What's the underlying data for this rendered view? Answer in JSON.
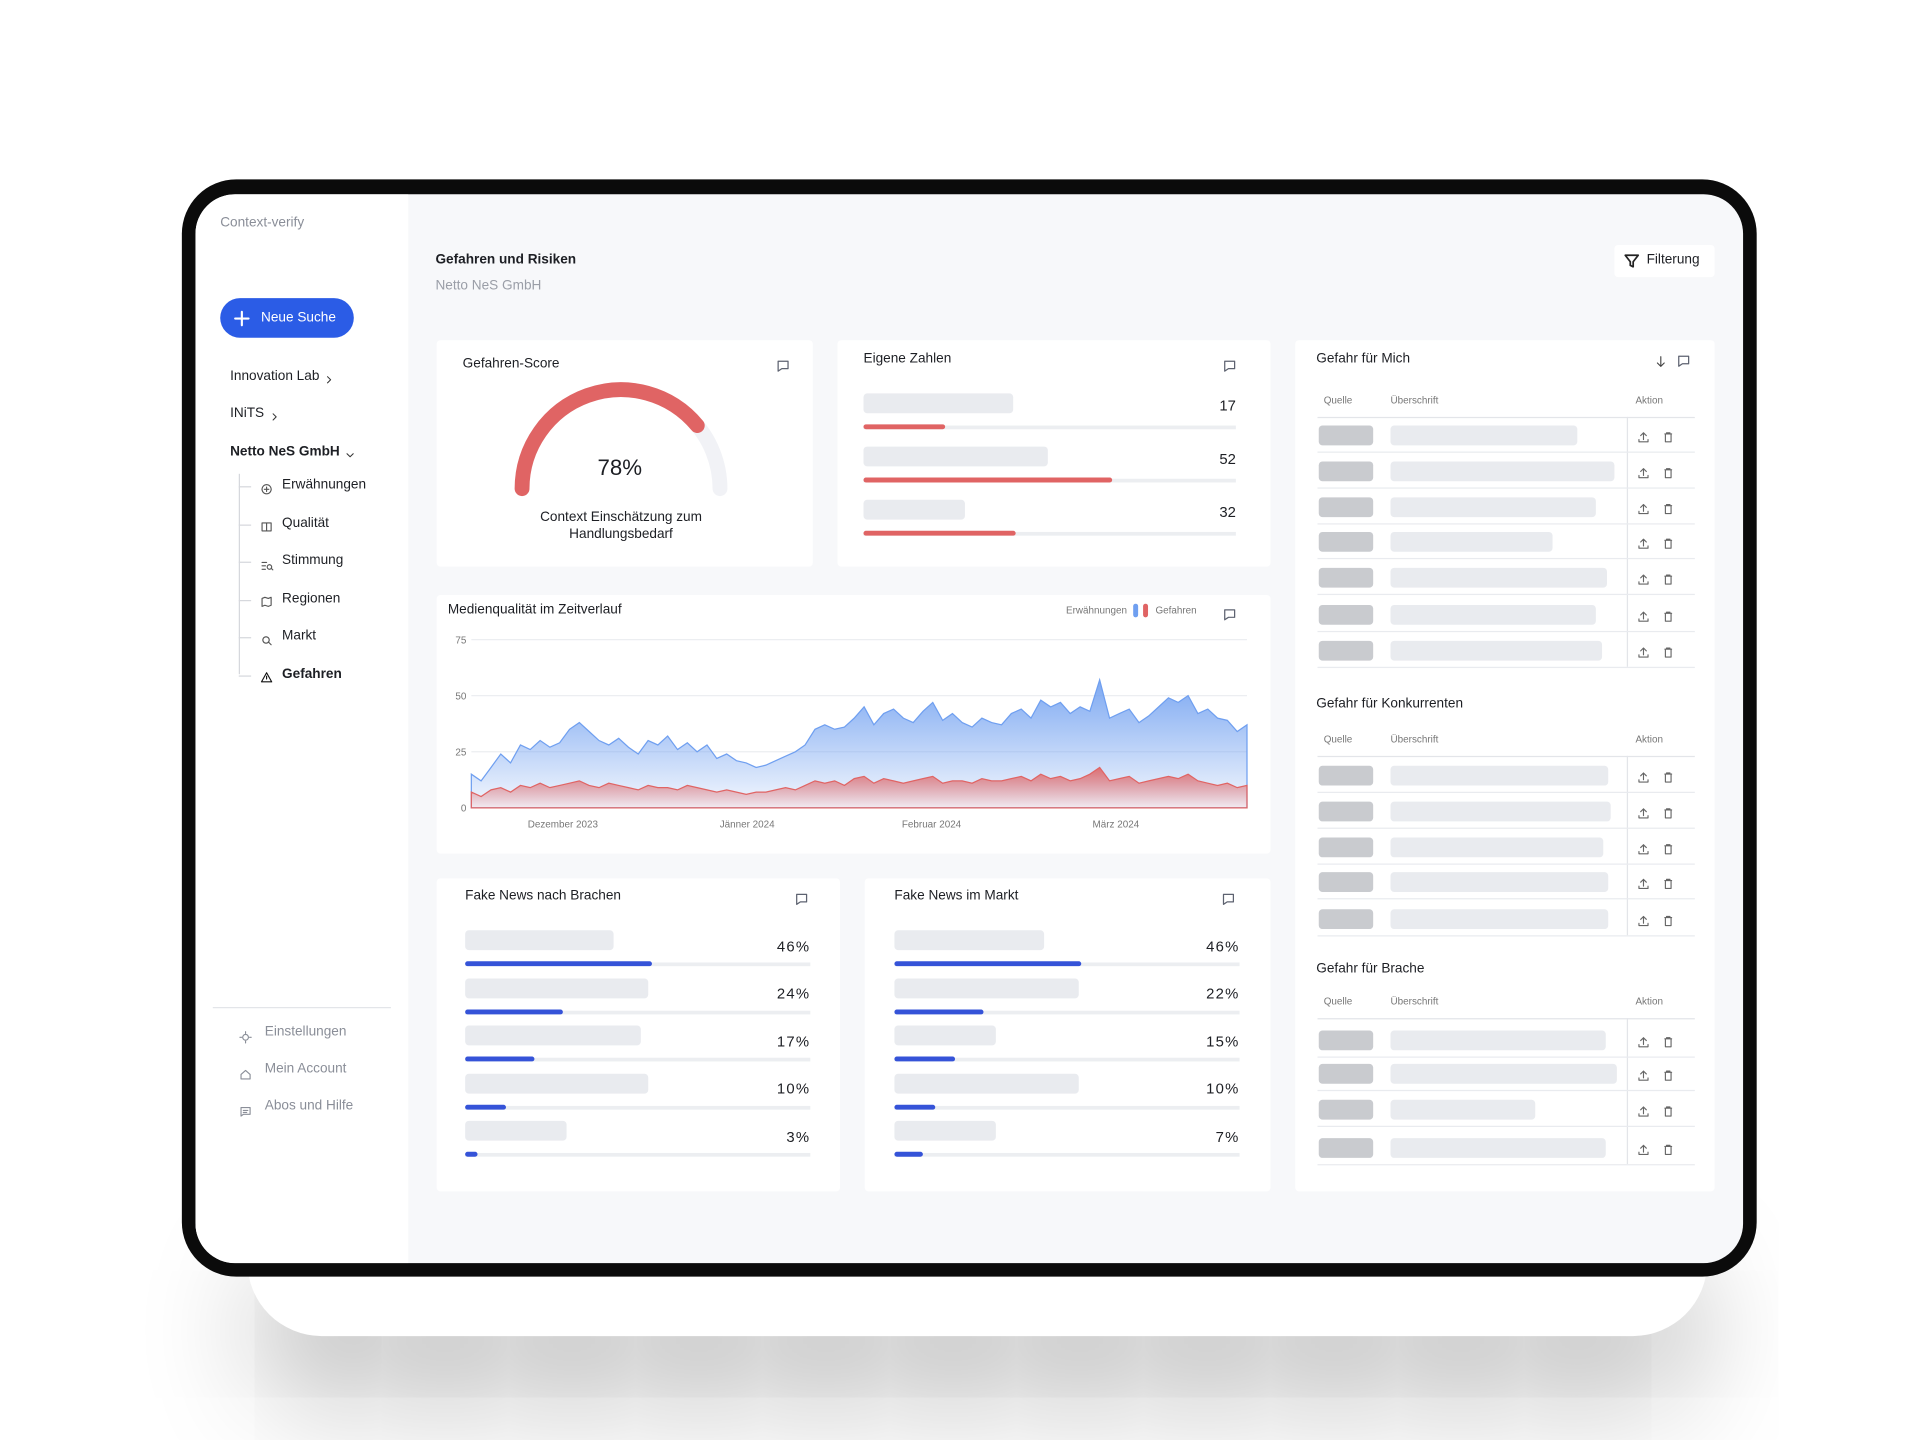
{
  "app_name": "Context-verify",
  "sidebar": {
    "new_search": "Neue Suche",
    "nav": [
      "Innovation Lab",
      "INiTS",
      "Netto NeS GmbH"
    ],
    "subnav": [
      "Erwähnungen",
      "Qualität",
      "Stimmung",
      "Regionen",
      "Markt",
      "Gefahren"
    ],
    "footer": [
      "Einstellungen",
      "Mein Account",
      "Abos und Hilfe"
    ]
  },
  "header": {
    "title": "Gefahren und Risiken",
    "subtitle": "Netto NeS GmbH",
    "filter": "Filterung"
  },
  "score_card": {
    "title": "Gefahren-Score",
    "value": 78,
    "label": "78%",
    "caption": "Context Einschätzung zum Handlungsbedarf"
  },
  "own_numbers": {
    "title": "Eigene Zahlen",
    "values": [
      17,
      52,
      32
    ]
  },
  "chart_data": {
    "type": "area",
    "title": "Medienqualität im Zeitverlauf",
    "x_labels": [
      "Dezember 2023",
      "Jänner 2024",
      "Februar 2024",
      "März 2024"
    ],
    "series": [
      {
        "name": "Erwähnungen",
        "color": "#6f9ff0",
        "values": [
          15,
          12,
          18,
          24,
          20,
          28,
          26,
          30,
          27,
          29,
          35,
          38,
          34,
          30,
          28,
          31,
          27,
          24,
          30,
          28,
          32,
          26,
          29,
          25,
          28,
          22,
          24,
          21,
          20,
          18,
          19,
          21,
          23,
          25,
          28,
          35,
          37,
          35,
          36,
          40,
          45,
          37,
          42,
          44,
          40,
          38,
          43,
          47,
          39,
          42,
          38,
          36,
          40,
          38,
          37,
          42,
          44,
          40,
          48,
          45,
          47,
          42,
          45,
          43,
          57,
          40,
          42,
          44,
          38,
          41,
          45,
          49,
          47,
          50,
          42,
          44,
          40,
          39,
          34,
          37
        ]
      },
      {
        "name": "Gefahren",
        "color": "#e06464",
        "values": [
          7,
          5,
          8,
          9,
          7,
          10,
          9,
          11,
          9,
          10,
          11,
          12,
          10,
          9,
          11,
          10,
          9,
          8,
          10,
          9,
          9,
          8,
          10,
          9,
          8,
          7,
          8,
          7,
          6,
          7,
          7,
          8,
          9,
          8,
          10,
          12,
          11,
          12,
          10,
          13,
          14,
          11,
          13,
          12,
          11,
          12,
          13,
          14,
          11,
          12,
          12,
          11,
          13,
          12,
          12,
          13,
          14,
          12,
          15,
          13,
          14,
          12,
          13,
          15,
          18,
          12,
          13,
          14,
          11,
          12,
          13,
          14,
          13,
          15,
          12,
          11,
          10,
          11,
          9,
          10
        ]
      }
    ],
    "ylim": [
      0,
      75
    ],
    "yticks": [
      0,
      25,
      50,
      75
    ],
    "grid": true
  },
  "fake_news_sectors": {
    "title": "Fake News nach Brachen",
    "values": [
      46,
      24,
      17,
      10,
      3
    ],
    "value_labels": [
      "46%",
      "24%",
      "17%",
      "10%",
      "3%"
    ],
    "color": "#3553d8"
  },
  "fake_news_market": {
    "title": "Fake News im Markt",
    "values": [
      46,
      22,
      15,
      10,
      7
    ],
    "value_labels": [
      "46%",
      "22%",
      "15%",
      "10%",
      "7%"
    ],
    "color": "#3553d8"
  },
  "tables": [
    {
      "title": "Gefahr für Mich",
      "columns": [
        "Quelle",
        "Überschrift",
        "Aktion"
      ]
    },
    {
      "title": "Gefahr für Konkurrenten",
      "columns": [
        "Quelle",
        "Überschrift",
        "Aktion"
      ]
    },
    {
      "title": "Gefahr für Brache",
      "columns": [
        "Quelle",
        "Überschrift",
        "Aktion"
      ]
    }
  ]
}
